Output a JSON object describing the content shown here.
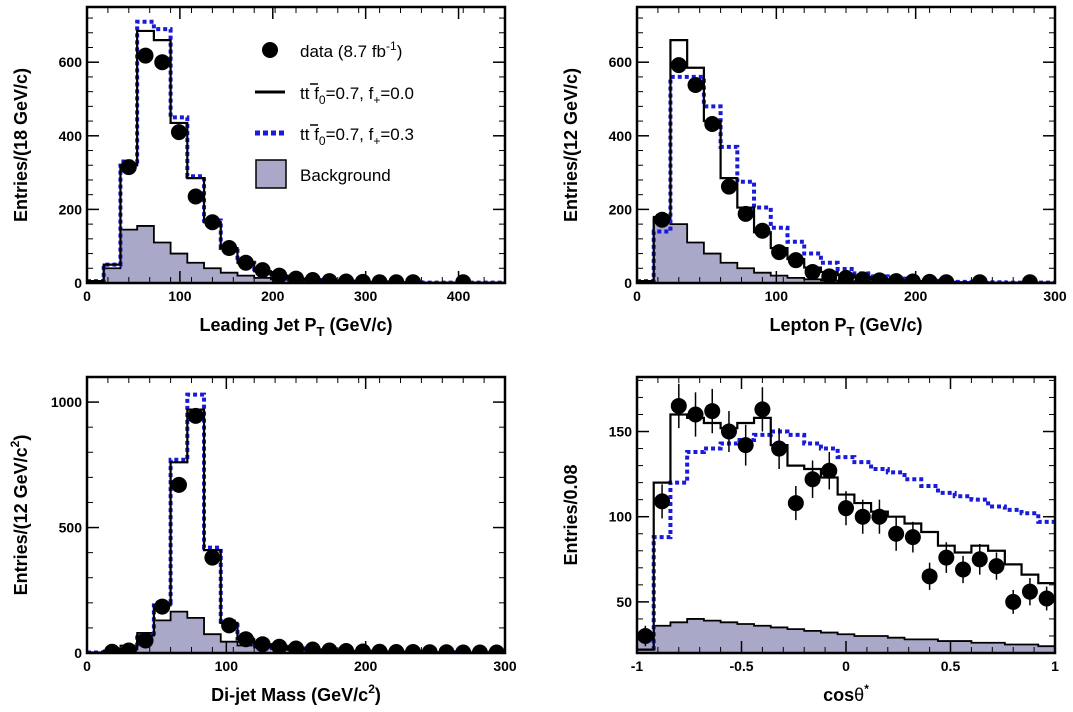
{
  "legend": {
    "data": {
      "label": "data (8.7 fb",
      "sup": "-1",
      "tail": ")"
    },
    "sm": {
      "label": "t",
      "label2": " f",
      "sub0": "0",
      "mid": "=0.7, f",
      "subplus": "+",
      "tail": "=0.0"
    },
    "alt": {
      "label": "t",
      "label2": " f",
      "sub0": "0",
      "mid": "=0.7, f",
      "subplus": "+",
      "tail": "=0.3"
    },
    "background": {
      "label": "Background"
    }
  },
  "colors": {
    "data": "#000000",
    "sm": "#000000",
    "alt": "#1a1adb",
    "background_fill": "#a9a8c8",
    "background_line": "#000000"
  },
  "chart_data": [
    {
      "type": "line",
      "title": "",
      "xlabel_main": "Leading Jet P",
      "xlabel_sub": "T",
      "xlabel_tail": " (GeV/c)",
      "ylabel": "Entries/(18 GeV/c)",
      "xlim": [
        0,
        450
      ],
      "ylim": [
        0,
        750
      ],
      "xticks": [
        0,
        100,
        200,
        300,
        400
      ],
      "yticks": [
        0,
        200,
        400,
        600
      ],
      "bin_edges": [
        0,
        18,
        36,
        54,
        72,
        90,
        108,
        126,
        144,
        162,
        180,
        198,
        216,
        234,
        252,
        270,
        288,
        306,
        324,
        342,
        360,
        378,
        396,
        414,
        432,
        450
      ],
      "series": [
        {
          "name": "data",
          "type": "scatter",
          "x": [
            45,
            63,
            81,
            99,
            117,
            135,
            153,
            171,
            189,
            207,
            225,
            243,
            261,
            279,
            297,
            315,
            333,
            351,
            405
          ],
          "y": [
            315,
            618,
            600,
            410,
            235,
            165,
            95,
            55,
            35,
            20,
            12,
            8,
            5,
            4,
            3,
            2,
            2,
            2,
            2
          ]
        },
        {
          "name": "sm",
          "type": "step",
          "y": [
            5,
            50,
            320,
            685,
            660,
            435,
            285,
            165,
            95,
            55,
            32,
            20,
            12,
            8,
            5,
            4,
            3,
            2,
            2,
            2,
            1,
            1,
            1,
            1,
            1
          ]
        },
        {
          "name": "alt",
          "type": "step",
          "y": [
            5,
            50,
            330,
            710,
            690,
            450,
            290,
            170,
            95,
            55,
            32,
            20,
            12,
            8,
            5,
            4,
            3,
            2,
            2,
            2,
            1,
            1,
            1,
            1,
            1
          ]
        },
        {
          "name": "background",
          "type": "filled-step",
          "y": [
            2,
            40,
            145,
            155,
            110,
            80,
            55,
            40,
            28,
            20,
            14,
            10,
            7,
            5,
            4,
            3,
            2,
            2,
            1,
            1,
            1,
            1,
            1,
            1,
            1
          ]
        }
      ]
    },
    {
      "type": "line",
      "title": "",
      "xlabel_main": "Lepton P",
      "xlabel_sub": "T",
      "xlabel_tail": " (GeV/c)",
      "ylabel": "Entries/(12 GeV/c)",
      "xlim": [
        0,
        300
      ],
      "ylim": [
        0,
        750
      ],
      "xticks": [
        0,
        100,
        200,
        300
      ],
      "yticks": [
        0,
        200,
        400,
        600
      ],
      "bin_edges": [
        0,
        12,
        24,
        36,
        48,
        60,
        72,
        84,
        96,
        108,
        120,
        132,
        144,
        156,
        168,
        180,
        192,
        204,
        216,
        228,
        240,
        252,
        264,
        276,
        288,
        300
      ],
      "series": [
        {
          "name": "data",
          "type": "scatter",
          "x": [
            18,
            30,
            42,
            54,
            66,
            78,
            90,
            102,
            114,
            126,
            138,
            150,
            162,
            174,
            186,
            198,
            210,
            222,
            246,
            282
          ],
          "y": [
            172,
            592,
            538,
            432,
            262,
            188,
            142,
            84,
            62,
            30,
            18,
            14,
            10,
            7,
            5,
            4,
            3,
            2,
            2,
            2
          ]
        },
        {
          "name": "sm",
          "type": "step",
          "y": [
            5,
            175,
            660,
            585,
            440,
            285,
            205,
            138,
            95,
            65,
            42,
            30,
            22,
            15,
            10,
            7,
            5,
            4,
            3,
            2,
            2,
            1,
            1,
            1,
            1
          ]
        },
        {
          "name": "alt",
          "type": "step",
          "y": [
            5,
            140,
            560,
            560,
            480,
            370,
            275,
            205,
            150,
            112,
            80,
            55,
            38,
            26,
            18,
            12,
            8,
            6,
            4,
            3,
            2,
            2,
            1,
            1,
            1
          ]
        },
        {
          "name": "background",
          "type": "filled-step",
          "y": [
            2,
            180,
            160,
            110,
            80,
            55,
            40,
            28,
            20,
            14,
            10,
            7,
            5,
            4,
            3,
            2,
            2,
            1,
            1,
            1,
            1,
            1,
            1,
            1,
            1
          ]
        }
      ]
    },
    {
      "type": "line",
      "title": "",
      "xlabel_main": "Di-jet Mass (GeV/c",
      "xlabel_sup": "2",
      "xlabel_tail": ")",
      "ylabel_main": "Entries/(12 GeV/c",
      "ylabel_sup": "2",
      "ylabel_tail": ")",
      "xlim": [
        0,
        300
      ],
      "ylim": [
        0,
        1100
      ],
      "xticks": [
        0,
        100,
        200,
        300
      ],
      "yticks": [
        0,
        500,
        1000
      ],
      "bin_edges": [
        0,
        12,
        24,
        36,
        48,
        60,
        72,
        84,
        96,
        108,
        120,
        132,
        144,
        156,
        168,
        180,
        192,
        204,
        216,
        228,
        240,
        252,
        264,
        276,
        288,
        300
      ],
      "series": [
        {
          "name": "data",
          "type": "scatter",
          "x": [
            18,
            30,
            42,
            54,
            66,
            78,
            90,
            102,
            114,
            126,
            138,
            150,
            162,
            174,
            186,
            198,
            210,
            222,
            234,
            246,
            258,
            270,
            282,
            294
          ],
          "y": [
            5,
            10,
            50,
            185,
            670,
            945,
            380,
            110,
            55,
            35,
            25,
            18,
            14,
            10,
            8,
            6,
            5,
            4,
            4,
            3,
            3,
            2,
            2,
            2
          ]
        },
        {
          "name": "sm",
          "type": "step",
          "y": [
            2,
            8,
            15,
            70,
            190,
            760,
            970,
            410,
            120,
            55,
            35,
            25,
            18,
            14,
            10,
            8,
            6,
            5,
            4,
            4,
            3,
            3,
            2,
            2,
            2
          ]
        },
        {
          "name": "alt",
          "type": "step",
          "y": [
            2,
            8,
            15,
            70,
            200,
            770,
            1030,
            420,
            125,
            58,
            36,
            25,
            18,
            14,
            10,
            8,
            6,
            5,
            4,
            4,
            3,
            3,
            2,
            2,
            2
          ]
        },
        {
          "name": "background",
          "type": "filled-step",
          "y": [
            2,
            10,
            30,
            80,
            130,
            165,
            140,
            75,
            45,
            30,
            22,
            16,
            12,
            9,
            7,
            5,
            4,
            3,
            3,
            2,
            2,
            2,
            2,
            2,
            2
          ]
        }
      ]
    },
    {
      "type": "line",
      "title": "",
      "xlabel_main": "cos",
      "xlabel_theta": "θ",
      "xlabel_sup": "*",
      "ylabel": "Entries/0.08",
      "xlim": [
        -1,
        1
      ],
      "ylim": [
        20,
        182
      ],
      "xticks": [
        -1,
        -0.5,
        0,
        0.5,
        1
      ],
      "xtick_labels": [
        "-1",
        "-0.5",
        "0",
        "0.5",
        "1"
      ],
      "yticks": [
        50,
        100,
        150
      ],
      "bin_edges": [
        -1,
        -0.92,
        -0.84,
        -0.76,
        -0.68,
        -0.6,
        -0.52,
        -0.44,
        -0.36,
        -0.28,
        -0.2,
        -0.12,
        -0.04,
        0.04,
        0.12,
        0.2,
        0.28,
        0.36,
        0.44,
        0.52,
        0.6,
        0.68,
        0.76,
        0.84,
        0.92,
        1.0
      ],
      "series": [
        {
          "name": "data",
          "type": "scatter",
          "x": [
            -0.96,
            -0.88,
            -0.8,
            -0.72,
            -0.64,
            -0.56,
            -0.48,
            -0.4,
            -0.32,
            -0.24,
            -0.16,
            -0.08,
            0.0,
            0.08,
            0.16,
            0.24,
            0.32,
            0.4,
            0.48,
            0.56,
            0.64,
            0.72,
            0.8,
            0.88,
            0.96
          ],
          "y": [
            30,
            109,
            165,
            160,
            162,
            150,
            142,
            163,
            140,
            108,
            122,
            127,
            105,
            100,
            100,
            90,
            88,
            65,
            76,
            69,
            75,
            71,
            50,
            56,
            52
          ],
          "yerr": [
            6,
            10,
            13,
            13,
            13,
            12,
            12,
            13,
            12,
            10,
            11,
            11,
            10,
            10,
            10,
            10,
            9,
            8,
            9,
            8,
            9,
            8,
            7,
            8,
            7
          ]
        },
        {
          "name": "sm",
          "type": "step",
          "y": [
            22,
            120,
            160,
            158,
            155,
            152,
            155,
            158,
            142,
            130,
            128,
            123,
            113,
            108,
            103,
            100,
            96,
            91,
            83,
            79,
            83,
            80,
            72,
            66,
            61
          ]
        },
        {
          "name": "alt",
          "type": "step",
          "y": [
            15,
            88,
            120,
            138,
            140,
            143,
            145,
            148,
            150,
            148,
            143,
            140,
            135,
            132,
            128,
            126,
            122,
            118,
            114,
            112,
            110,
            106,
            104,
            102,
            97
          ]
        },
        {
          "name": "background",
          "type": "filled-step",
          "y": [
            28,
            36,
            38,
            40,
            39,
            38,
            37,
            36,
            35,
            34,
            33,
            32,
            31,
            30,
            30,
            29,
            28,
            28,
            27,
            27,
            26,
            26,
            25,
            25,
            24
          ]
        }
      ]
    }
  ]
}
